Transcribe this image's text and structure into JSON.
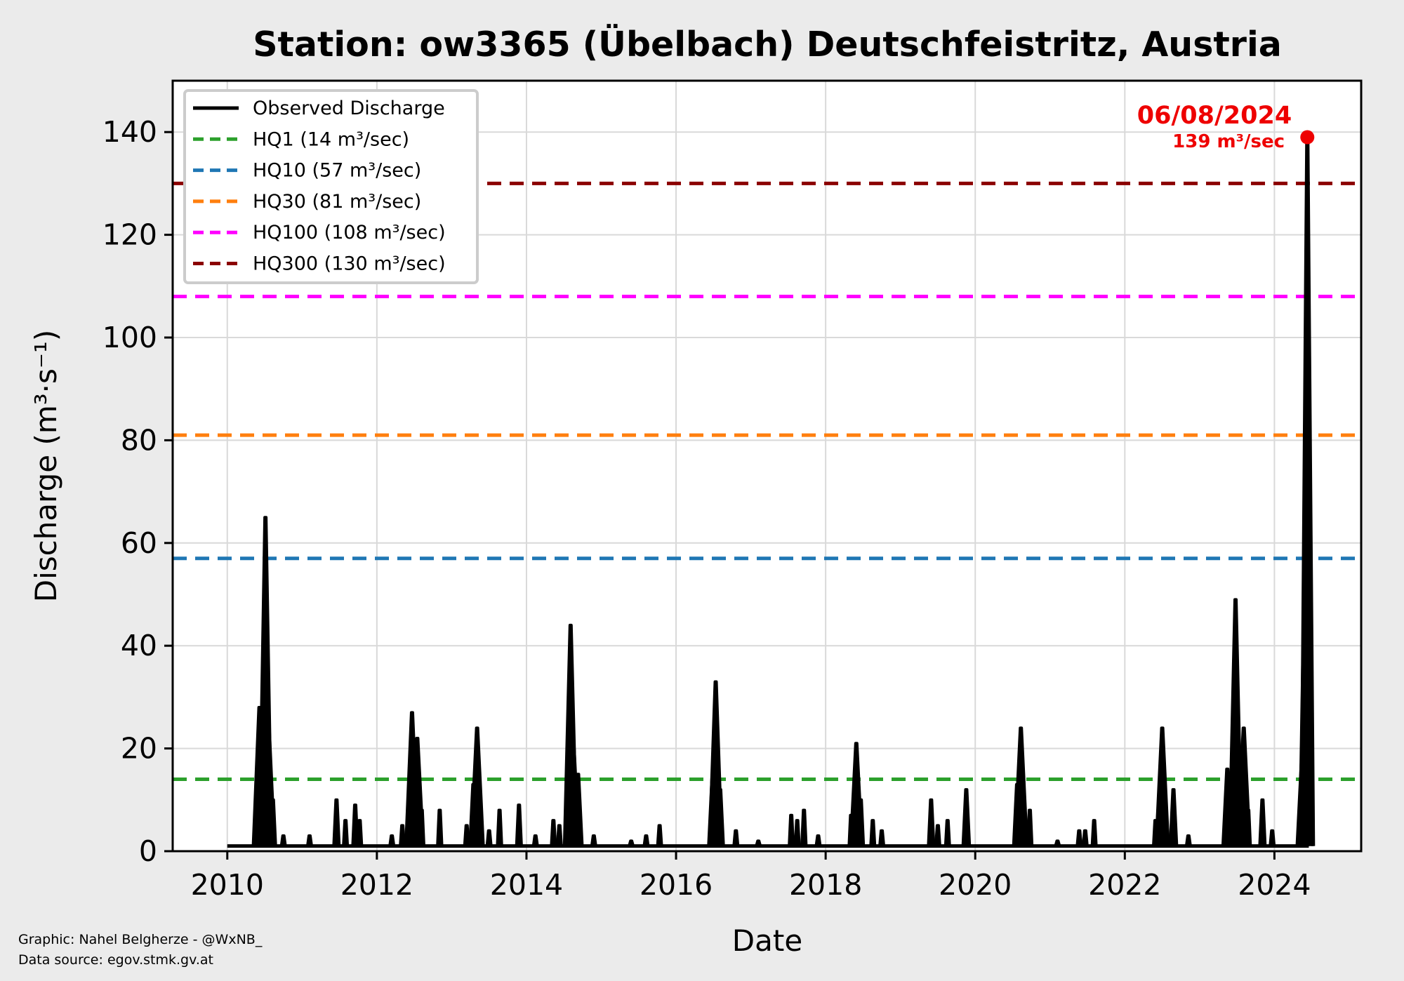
{
  "chart_data": {
    "type": "line",
    "title": "Station: ow3365 (Übelbach) Deutschfeistritz, Austria",
    "xlabel": "Date",
    "ylabel": "Discharge (m³·s⁻¹)",
    "xlim": [
      2009.27,
      2025.16
    ],
    "ylim": [
      0,
      150
    ],
    "xticks": [
      2010,
      2012,
      2014,
      2016,
      2018,
      2020,
      2022,
      2024
    ],
    "yticks": [
      0,
      20,
      40,
      60,
      80,
      100,
      120,
      140
    ],
    "grid": true,
    "legend_position": "top-left",
    "series": [
      {
        "name": "Observed Discharge",
        "color": "#000000",
        "baseline": 1,
        "range": [
          2010.0,
          2024.46
        ],
        "peaks": [
          [
            2010.38,
            5
          ],
          [
            2010.43,
            28
          ],
          [
            2010.51,
            65
          ],
          [
            2010.55,
            25
          ],
          [
            2010.61,
            10
          ],
          [
            2010.75,
            3
          ],
          [
            2011.1,
            3
          ],
          [
            2011.46,
            10
          ],
          [
            2011.58,
            6
          ],
          [
            2011.71,
            9
          ],
          [
            2011.77,
            6
          ],
          [
            2012.2,
            3
          ],
          [
            2012.34,
            5
          ],
          [
            2012.47,
            27
          ],
          [
            2012.54,
            22
          ],
          [
            2012.6,
            8
          ],
          [
            2012.84,
            8
          ],
          [
            2013.2,
            5
          ],
          [
            2013.29,
            13
          ],
          [
            2013.34,
            24
          ],
          [
            2013.5,
            4
          ],
          [
            2013.64,
            8
          ],
          [
            2013.9,
            9
          ],
          [
            2014.12,
            3
          ],
          [
            2014.36,
            6
          ],
          [
            2014.44,
            5
          ],
          [
            2014.59,
            44
          ],
          [
            2014.63,
            20
          ],
          [
            2014.69,
            15
          ],
          [
            2014.9,
            3
          ],
          [
            2015.4,
            2
          ],
          [
            2015.6,
            3
          ],
          [
            2015.78,
            5
          ],
          [
            2016.49,
            15
          ],
          [
            2016.53,
            33
          ],
          [
            2016.59,
            12
          ],
          [
            2016.8,
            4
          ],
          [
            2017.1,
            2
          ],
          [
            2017.54,
            7
          ],
          [
            2017.62,
            6
          ],
          [
            2017.71,
            8
          ],
          [
            2017.9,
            3
          ],
          [
            2018.34,
            7
          ],
          [
            2018.41,
            21
          ],
          [
            2018.47,
            10
          ],
          [
            2018.63,
            6
          ],
          [
            2018.75,
            4
          ],
          [
            2019.41,
            10
          ],
          [
            2019.5,
            5
          ],
          [
            2019.63,
            6
          ],
          [
            2019.88,
            12
          ],
          [
            2020.56,
            13
          ],
          [
            2020.61,
            24
          ],
          [
            2020.73,
            8
          ],
          [
            2021.1,
            2
          ],
          [
            2021.39,
            4
          ],
          [
            2021.47,
            4
          ],
          [
            2021.59,
            6
          ],
          [
            2022.41,
            6
          ],
          [
            2022.45,
            8
          ],
          [
            2022.5,
            24
          ],
          [
            2022.65,
            12
          ],
          [
            2022.85,
            3
          ],
          [
            2023.37,
            16
          ],
          [
            2023.48,
            49
          ],
          [
            2023.53,
            8
          ],
          [
            2023.59,
            24
          ],
          [
            2023.65,
            8
          ],
          [
            2023.84,
            10
          ],
          [
            2023.97,
            4
          ],
          [
            2024.38,
            21
          ],
          [
            2024.42,
            66
          ],
          [
            2024.44,
            139
          ]
        ]
      }
    ],
    "thresholds": [
      {
        "label": "HQ1 (14 m³/sec)",
        "value": 14,
        "color": "#2ca02c"
      },
      {
        "label": "HQ10 (57 m³/sec)",
        "value": 57,
        "color": "#1f77b4"
      },
      {
        "label": "HQ30 (81 m³/sec)",
        "value": 81,
        "color": "#ff7f0e"
      },
      {
        "label": "HQ100 (108 m³/sec)",
        "value": 108,
        "color": "#ff00ff"
      },
      {
        "label": "HQ300 (130 m³/sec)",
        "value": 130,
        "color": "#8b0000"
      }
    ],
    "annotation": {
      "date": "06/08/2024",
      "value_label": "139 m³/sec",
      "x": 2024.44,
      "y": 139,
      "color": "#ee0000"
    }
  },
  "footer": {
    "credit": "Graphic: Nahel Belgherze - @WxNB_",
    "source": "Data source: egov.stmk.gv.at"
  }
}
